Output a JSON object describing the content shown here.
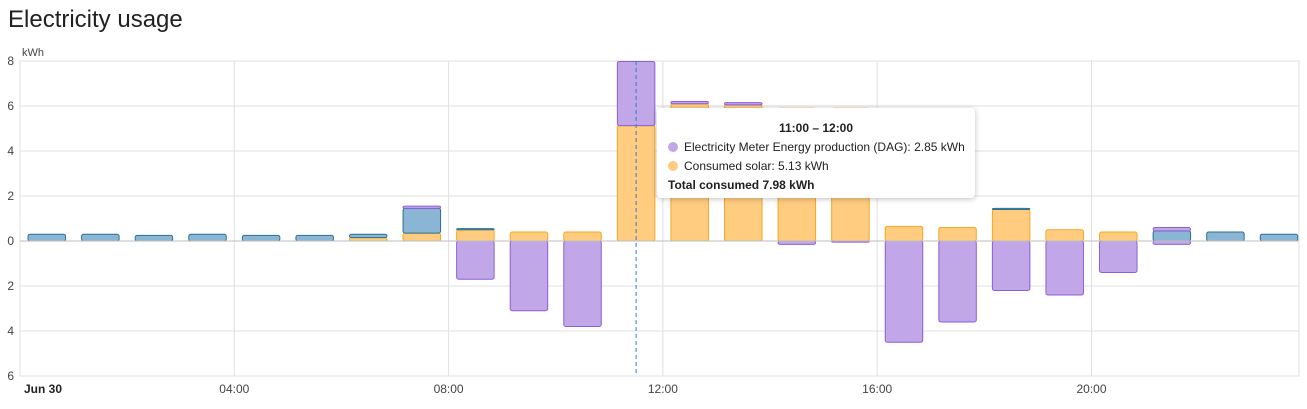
{
  "card": {
    "title": "Electricity usage"
  },
  "chart_data": {
    "type": "bar",
    "stacked": true,
    "unit": "kWh",
    "ylim": [
      -6,
      8
    ],
    "yticks": [
      -6,
      -4,
      -2,
      0,
      2,
      4,
      6,
      8
    ],
    "ytick_labels": [
      "6",
      "4",
      "2",
      "0",
      "2",
      "4",
      "6",
      "8"
    ],
    "x_tick_labels": [
      {
        "hour": 0,
        "label": "Jun 30",
        "bold": true
      },
      {
        "hour": 4,
        "label": "04:00",
        "bold": false
      },
      {
        "hour": 8,
        "label": "08:00",
        "bold": false
      },
      {
        "hour": 12,
        "label": "12:00",
        "bold": false
      },
      {
        "hour": 16,
        "label": "16:00",
        "bold": false
      },
      {
        "hour": 20,
        "label": "20:00",
        "bold": false
      }
    ],
    "hours": [
      0,
      1,
      2,
      3,
      4,
      5,
      6,
      7,
      8,
      9,
      10,
      11,
      12,
      13,
      14,
      15,
      16,
      17,
      18,
      19,
      20,
      21,
      22,
      23
    ],
    "series": [
      {
        "key": "grid",
        "fill": "#8ab5d4",
        "stroke": "#2f6f8f",
        "values": [
          0.3,
          0.3,
          0.25,
          0.3,
          0.25,
          0.25,
          0.15,
          1.1,
          0.05,
          0,
          0,
          0,
          0,
          0,
          0,
          0,
          0,
          0,
          0.05,
          0,
          0,
          0.45,
          0.4,
          0.3
        ]
      },
      {
        "key": "consumed_solar",
        "fill": "#ffcc80",
        "stroke": "#f5a623",
        "values": [
          0,
          0,
          0,
          0,
          0,
          0,
          0.15,
          0.35,
          0.5,
          0.4,
          0.4,
          5.13,
          6.1,
          6.05,
          5.9,
          5.9,
          0.65,
          0.6,
          1.4,
          0.5,
          0.4,
          0,
          0,
          0
        ]
      },
      {
        "key": "production",
        "fill": "#c1a7e8",
        "stroke": "#8c5fd6",
        "values": [
          0,
          0,
          0,
          0,
          0,
          0,
          0,
          0.1,
          0,
          0,
          0,
          2.85,
          0.1,
          0.1,
          0,
          0,
          0,
          0,
          0,
          0,
          0,
          0.15,
          0,
          0
        ]
      },
      {
        "key": "return",
        "fill": "#c1a7e8",
        "stroke": "#8c5fd6",
        "values": [
          0,
          0,
          0,
          0,
          0,
          0,
          0,
          0,
          -1.7,
          -3.1,
          -3.8,
          0,
          0,
          0,
          -0.15,
          -0.05,
          -4.5,
          -3.6,
          -2.2,
          -2.4,
          -1.4,
          -0.15,
          0,
          0
        ]
      }
    ],
    "cursor_hour": 11,
    "tooltip": {
      "title": "11:00 – 12:00",
      "rows": [
        {
          "color": "#c1a7e8",
          "text": "Electricity Meter Energy production (DAG): 2.85 kWh"
        },
        {
          "color": "#ffcc80",
          "text": "Consumed solar: 5.13 kWh"
        }
      ],
      "total": "Total consumed 7.98 kWh"
    }
  }
}
